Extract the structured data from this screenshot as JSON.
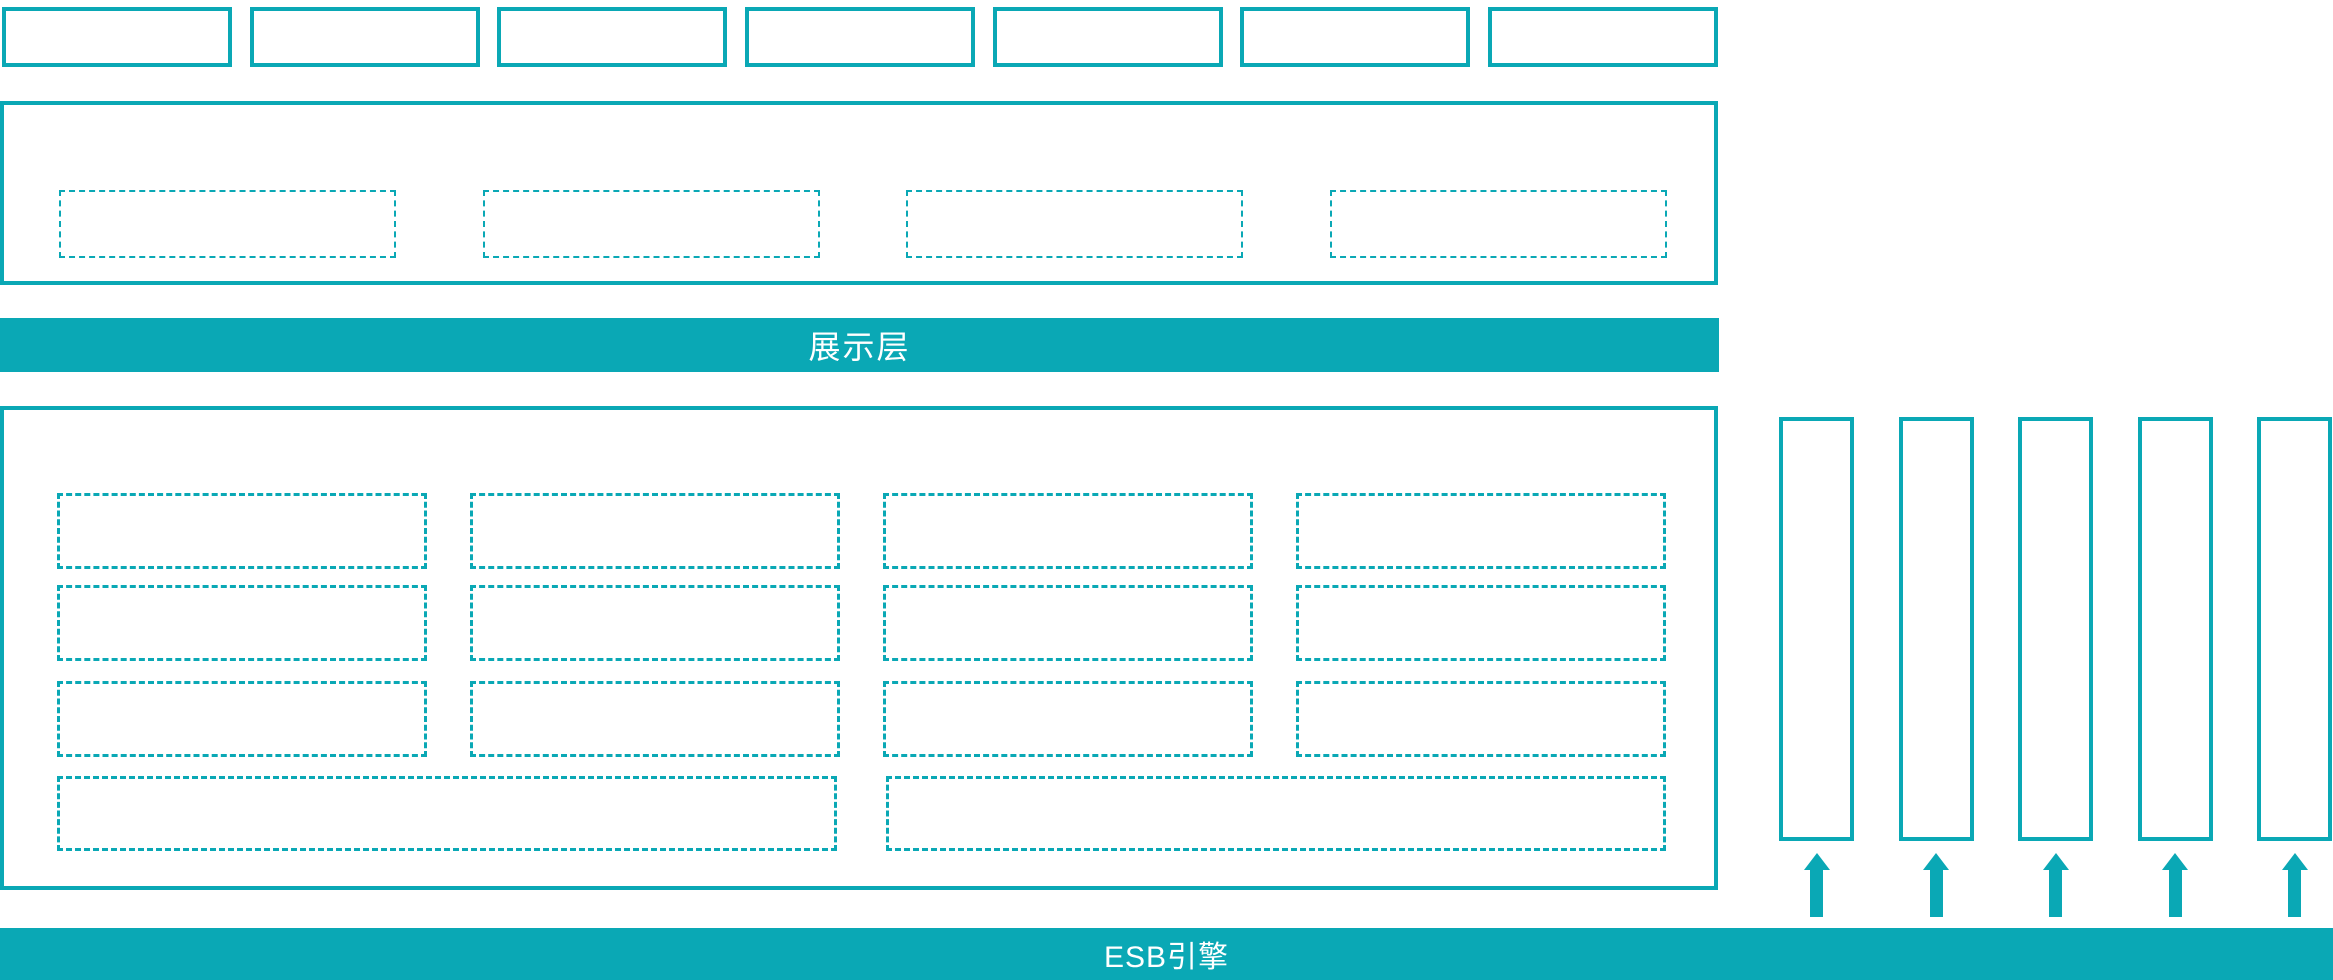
{
  "colors": {
    "accent": "#0aa8b5",
    "banner_text": "#ffffff",
    "background": "#ffffff"
  },
  "top_row": {
    "box_count": 7
  },
  "portal_section": {
    "dashed_box_count": 4
  },
  "presentation_banner": {
    "label": "展示层"
  },
  "service_section": {
    "grid_rows": [
      {
        "box_count": 4
      },
      {
        "box_count": 4
      },
      {
        "box_count": 4
      }
    ],
    "wide_box_count": 2
  },
  "right_columns": {
    "column_count": 5,
    "arrow_count": 5
  },
  "esb_banner": {
    "label": "ESB引擎"
  }
}
